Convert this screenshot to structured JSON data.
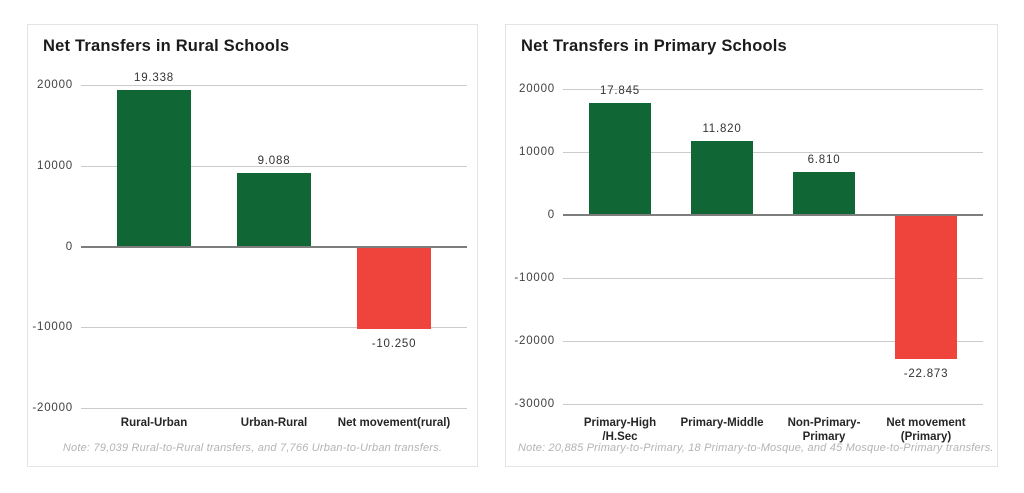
{
  "colors": {
    "positive_bar": "#116636",
    "negative_bar": "#EF443C",
    "gridline": "#CBCBCB",
    "zero_line": "#7D7D7D",
    "title_text": "#1B1B1B",
    "tick_text": "#414141",
    "value_label_text": "#333333",
    "category_text": "#262626",
    "note_text": "#B4B4B4",
    "card_border": "#E4E4E4",
    "background": "#FFFFFF"
  },
  "chart_data": [
    {
      "type": "bar",
      "title": "Net Transfers in Rural Schools",
      "categories": [
        "Rural-Urban",
        "Urban-Rural",
        "Net movement(rural)"
      ],
      "values": [
        19338,
        9088,
        -10250
      ],
      "value_labels": [
        "19.338",
        "9.088",
        "-10.250"
      ],
      "bar_colors": [
        "#116636",
        "#116636",
        "#EF443C"
      ],
      "ylim": [
        -20000,
        20000
      ],
      "yticks": [
        20000,
        10000,
        0,
        -10000,
        -20000
      ],
      "ytick_labels": [
        "20000",
        "10000",
        "0",
        "-10000",
        "-20000"
      ],
      "grid": true,
      "legend": false,
      "note": "Note: 79,039 Rural-to-Rural transfers, and 7,766 Urban-to-Urban transfers."
    },
    {
      "type": "bar",
      "title": "Net Transfers in Primary Schools",
      "categories": [
        "Primary-High /H.Sec",
        "Primary-Middle",
        "Non-Primary-Primary",
        "Net movement (Primary)"
      ],
      "values": [
        17845,
        11820,
        6810,
        -22873
      ],
      "value_labels": [
        "17.845",
        "11.820",
        "6.810",
        "-22.873"
      ],
      "bar_colors": [
        "#116636",
        "#116636",
        "#116636",
        "#EF443C"
      ],
      "ylim": [
        -30000,
        20000
      ],
      "yticks": [
        20000,
        10000,
        0,
        -10000,
        -20000,
        -30000
      ],
      "ytick_labels": [
        "20000",
        "10000",
        "0",
        "-10000",
        "-20000",
        "-30000"
      ],
      "grid": true,
      "legend": false,
      "note": "Note: 20,885 Primary-to-Primary, 18 Primary-to-Mosque, and 45 Mosque-to-Primary transfers."
    }
  ]
}
